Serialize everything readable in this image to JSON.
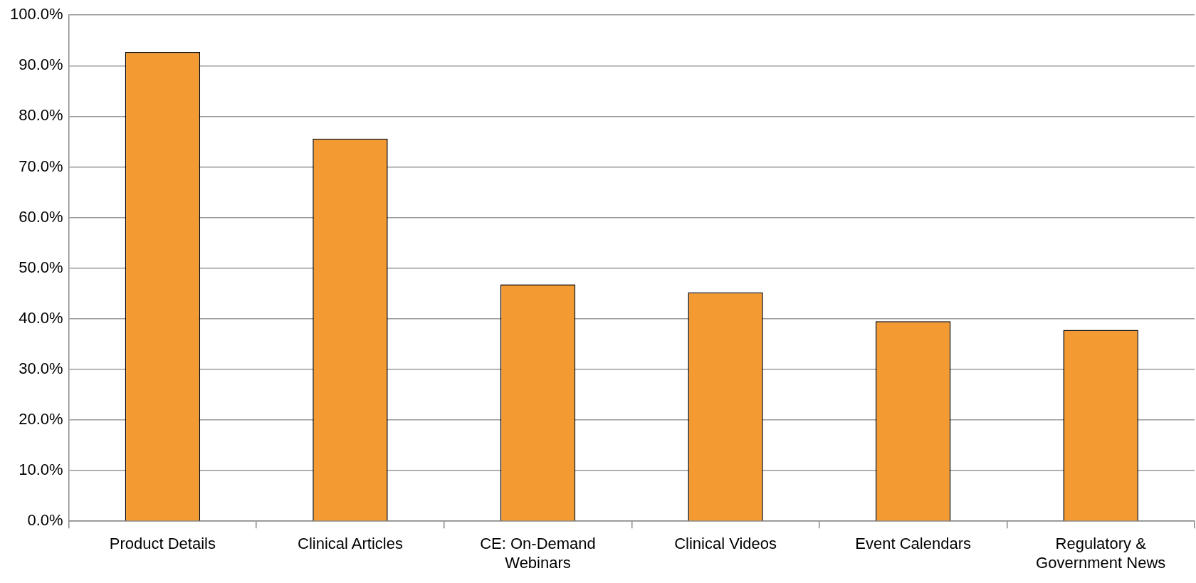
{
  "chart_data": {
    "type": "bar",
    "categories": [
      "Product Details",
      "Clinical Articles",
      "CE: On-Demand Webinars",
      "Clinical Videos",
      "Event Calendars",
      "Regulatory & Government News"
    ],
    "values": [
      92.7,
      75.6,
      46.8,
      45.2,
      39.5,
      37.8
    ],
    "color": "#f39a33",
    "ylim": [
      0,
      100
    ],
    "yticks": [
      {
        "value": 0,
        "label": "0.0%"
      },
      {
        "value": 10,
        "label": "10.0%"
      },
      {
        "value": 20,
        "label": "20.0%"
      },
      {
        "value": 30,
        "label": "30.0%"
      },
      {
        "value": 40,
        "label": "40.0%"
      },
      {
        "value": 50,
        "label": "50.0%"
      },
      {
        "value": 60,
        "label": "60.0%"
      },
      {
        "value": 70,
        "label": "70.0%"
      },
      {
        "value": 80,
        "label": "80.0%"
      },
      {
        "value": 90,
        "label": "90.0%"
      },
      {
        "value": 100,
        "label": "100.0%"
      }
    ],
    "grid": "y",
    "legend": false
  }
}
